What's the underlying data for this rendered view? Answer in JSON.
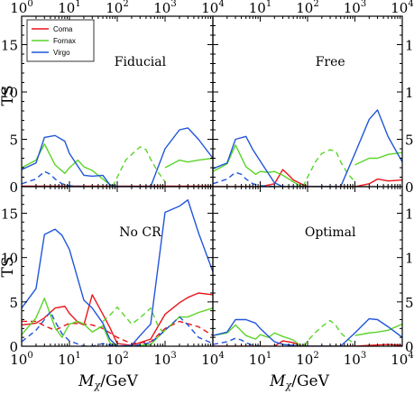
{
  "colors": {
    "Coma": "#e8151b",
    "Fornax": "#5ad42a",
    "Virgo": "#2156d9",
    "frame": "#000000"
  },
  "labels": {
    "ylabel": "TS"
  },
  "chart_data": {
    "type": "line",
    "x_scale": "log",
    "xlim": [
      1,
      10000
    ],
    "ylim": [
      0,
      18
    ],
    "x_ticks": [
      1,
      10,
      100,
      1000,
      10000
    ],
    "y_ticks": [
      0,
      5,
      10,
      15
    ],
    "legend": {
      "placement": "top-left",
      "entries": [
        {
          "name": "Coma",
          "color": "#e8151b"
        },
        {
          "name": "Fornax",
          "color": "#5ad42a"
        },
        {
          "name": "Virgo",
          "color": "#2156d9"
        }
      ]
    },
    "panels": [
      {
        "title": "Fiducial",
        "series": [
          {
            "name": "Coma",
            "style": "solid",
            "x": [
              1,
              10000
            ],
            "y": [
              0.05,
              0.05
            ]
          },
          {
            "name": "Fornax",
            "style": "solid",
            "x": [
              1,
              2,
              3,
              5,
              8,
              10,
              15,
              20,
              30,
              50,
              70,
              80
            ],
            "y": [
              2.0,
              2.8,
              4.5,
              2.3,
              1.4,
              2.0,
              2.8,
              2.1,
              1.7,
              0.8,
              0.2,
              0.0
            ]
          },
          {
            "name": "Fornax",
            "style": "dashed",
            "x": [
              80,
              100,
              150,
              200,
              300,
              400,
              500,
              700,
              1000
            ],
            "y": [
              0.0,
              1.0,
              2.8,
              3.4,
              4.2,
              3.9,
              2.9,
              1.6,
              0.5
            ]
          },
          {
            "name": "Fornax",
            "style": "solid",
            "x": [
              1000,
              2000,
              3000,
              5000,
              10000
            ],
            "y": [
              2.0,
              2.8,
              2.6,
              2.8,
              3.0
            ]
          },
          {
            "name": "Virgo",
            "style": "solid",
            "x": [
              1,
              2,
              3,
              5,
              8,
              10,
              20,
              30,
              50,
              70,
              100,
              200,
              500,
              1000,
              2000,
              3000,
              5000,
              10000
            ],
            "y": [
              1.8,
              2.5,
              5.2,
              5.4,
              4.8,
              3.5,
              1.2,
              1.1,
              1.2,
              0.2,
              0.0,
              0.0,
              0.0,
              4.0,
              6.0,
              6.2,
              5.0,
              3.0
            ]
          },
          {
            "name": "Virgo",
            "style": "dashed",
            "x": [
              1,
              2,
              3,
              4,
              5,
              7,
              10,
              20
            ],
            "y": [
              0.3,
              0.8,
              1.6,
              1.3,
              0.8,
              0.3,
              0.1,
              0.0
            ]
          }
        ]
      },
      {
        "title": "Free",
        "series": [
          {
            "name": "Coma",
            "style": "solid",
            "x": [
              1,
              10,
              20,
              30,
              40,
              50,
              80,
              100,
              200,
              300,
              1000,
              2000,
              3000,
              5000,
              10000
            ],
            "y": [
              0.0,
              0.0,
              0.3,
              1.8,
              1.2,
              0.7,
              0.2,
              0.0,
              0.0,
              0.0,
              0.0,
              0.3,
              0.8,
              0.6,
              0.7
            ]
          },
          {
            "name": "Fornax",
            "style": "solid",
            "x": [
              1,
              2,
              3,
              5,
              8,
              10,
              15,
              20,
              30,
              50,
              70,
              80
            ],
            "y": [
              1.6,
              2.4,
              4.4,
              2.1,
              1.3,
              1.6,
              1.5,
              1.6,
              1.2,
              0.5,
              0.1,
              0.0
            ]
          },
          {
            "name": "Fornax",
            "style": "dashed",
            "x": [
              80,
              100,
              150,
              200,
              300,
              400,
              500,
              700,
              1000
            ],
            "y": [
              0.0,
              1.0,
              2.7,
              3.5,
              3.9,
              3.7,
              2.6,
              1.4,
              0.5
            ]
          },
          {
            "name": "Fornax",
            "style": "solid",
            "x": [
              1000,
              2000,
              3000,
              5000,
              10000
            ],
            "y": [
              2.3,
              3.0,
              3.0,
              3.4,
              3.6
            ]
          },
          {
            "name": "Virgo",
            "style": "solid",
            "x": [
              1,
              2,
              3,
              5,
              7,
              10,
              20,
              30,
              50,
              70,
              100,
              200,
              500,
              1000,
              2000,
              3000,
              5000,
              10000
            ],
            "y": [
              1.9,
              2.5,
              5.0,
              5.3,
              3.9,
              2.7,
              0.4,
              0.0,
              0.0,
              0.0,
              0.0,
              0.0,
              0.0,
              3.5,
              7.1,
              8.1,
              5.3,
              2.6
            ]
          },
          {
            "name": "Virgo",
            "style": "dashed",
            "x": [
              1,
              2,
              3,
              4,
              5,
              7,
              10,
              20
            ],
            "y": [
              0.3,
              0.8,
              1.5,
              1.3,
              0.8,
              0.3,
              0.1,
              0.0
            ]
          }
        ]
      },
      {
        "title": "No CR",
        "series": [
          {
            "name": "Coma",
            "style": "solid",
            "x": [
              1,
              2,
              3,
              5,
              8,
              10,
              15,
              20,
              30,
              50,
              70,
              100,
              200,
              500,
              1000,
              2000,
              3000,
              5000,
              10000
            ],
            "y": [
              2.4,
              2.6,
              3.2,
              4.3,
              4.5,
              3.7,
              2.7,
              2.4,
              5.8,
              3.6,
              2.1,
              0.3,
              0.1,
              0.8,
              3.6,
              4.9,
              5.5,
              6.0,
              5.8
            ]
          },
          {
            "name": "Coma",
            "style": "dashed",
            "x": [
              1,
              2,
              3,
              5,
              10,
              20,
              30,
              50,
              100,
              200,
              500,
              1000,
              2000,
              5000,
              10000
            ],
            "y": [
              2.8,
              2.8,
              2.3,
              1.8,
              2.6,
              2.5,
              2.4,
              2.0,
              1.0,
              0.3,
              0.5,
              2.0,
              2.8,
              2.2,
              1.2
            ]
          },
          {
            "name": "Fornax",
            "style": "solid",
            "x": [
              1,
              2,
              3,
              5,
              7,
              10,
              15,
              20,
              30,
              50,
              70,
              100,
              200,
              500,
              1000,
              2000,
              3000,
              5000,
              10000
            ],
            "y": [
              1.3,
              3.2,
              5.4,
              2.1,
              1.0,
              2.5,
              2.8,
              2.5,
              1.6,
              2.3,
              0.4,
              0.0,
              0.0,
              0.2,
              1.8,
              3.3,
              3.3,
              3.8,
              4.3
            ]
          },
          {
            "name": "Fornax",
            "style": "dashed",
            "x": [
              50,
              70,
              100,
              200,
              300,
              500,
              700,
              1000
            ],
            "y": [
              2.8,
              3.5,
              4.4,
              2.5,
              3.2,
              4.3,
              2.4,
              1.2
            ]
          },
          {
            "name": "Virgo",
            "style": "solid",
            "x": [
              1,
              2,
              3,
              5,
              7,
              10,
              20,
              30,
              50,
              70,
              100,
              200,
              300,
              500,
              1000,
              2000,
              3000,
              5000,
              10000
            ],
            "y": [
              4.3,
              6.5,
              12.6,
              13.2,
              12.5,
              10.9,
              5.2,
              4.3,
              2.6,
              0.8,
              0.0,
              0.1,
              1.2,
              2.5,
              15.1,
              15.8,
              16.5,
              12.8,
              8.4
            ]
          },
          {
            "name": "Virgo",
            "style": "dashed",
            "x": [
              1,
              2,
              3,
              4,
              5,
              7,
              10,
              20,
              30,
              50,
              100,
              200,
              500,
              1000,
              2000,
              3000,
              5000,
              10000
            ],
            "y": [
              0.5,
              1.8,
              3.0,
              3.9,
              2.8,
              1.4,
              0.6,
              0.0,
              0.0,
              0.3,
              0.0,
              0.0,
              0.4,
              1.8,
              3.3,
              2.4,
              1.0,
              0.3
            ]
          }
        ]
      },
      {
        "title": "Optimal",
        "series": [
          {
            "name": "Coma",
            "style": "solid",
            "x": [
              1,
              10,
              20,
              30,
              50,
              70,
              100,
              200,
              1000,
              2000,
              5000,
              10000
            ],
            "y": [
              0.0,
              0.0,
              0.0,
              0.6,
              0.4,
              0.1,
              0.0,
              0.0,
              0.0,
              0.1,
              0.2,
              0.1
            ]
          },
          {
            "name": "Fornax",
            "style": "solid",
            "x": [
              1,
              2,
              3,
              5,
              8,
              10,
              15,
              20,
              30,
              50,
              70,
              80
            ],
            "y": [
              1.2,
              1.5,
              2.4,
              1.2,
              0.8,
              1.3,
              1.0,
              1.5,
              1.1,
              0.7,
              0.1,
              0.0
            ]
          },
          {
            "name": "Fornax",
            "style": "dashed",
            "x": [
              80,
              100,
              150,
              200,
              300,
              400,
              500,
              700,
              1000
            ],
            "y": [
              0.0,
              0.6,
              1.6,
              2.2,
              2.9,
              2.3,
              1.5,
              0.8,
              0.3
            ]
          },
          {
            "name": "Fornax",
            "style": "solid",
            "x": [
              1000,
              2000,
              3000,
              5000,
              10000
            ],
            "y": [
              1.2,
              1.5,
              1.6,
              1.8,
              2.5
            ]
          },
          {
            "name": "Virgo",
            "style": "solid",
            "x": [
              1,
              2,
              3,
              5,
              8,
              10,
              20,
              30,
              50,
              70,
              100,
              200,
              500,
              1000,
              2000,
              3000,
              5000,
              10000
            ],
            "y": [
              1.2,
              1.6,
              3.0,
              3.0,
              2.6,
              2.0,
              0.5,
              0.2,
              0.1,
              0.0,
              0.0,
              0.0,
              0.0,
              1.5,
              3.1,
              3.0,
              2.2,
              1.0
            ]
          },
          {
            "name": "Virgo",
            "style": "dashed",
            "x": [
              1,
              2,
              3,
              4,
              5,
              7,
              10
            ],
            "y": [
              0.2,
              0.5,
              0.9,
              0.7,
              0.4,
              0.1,
              0.0
            ]
          }
        ]
      }
    ]
  }
}
